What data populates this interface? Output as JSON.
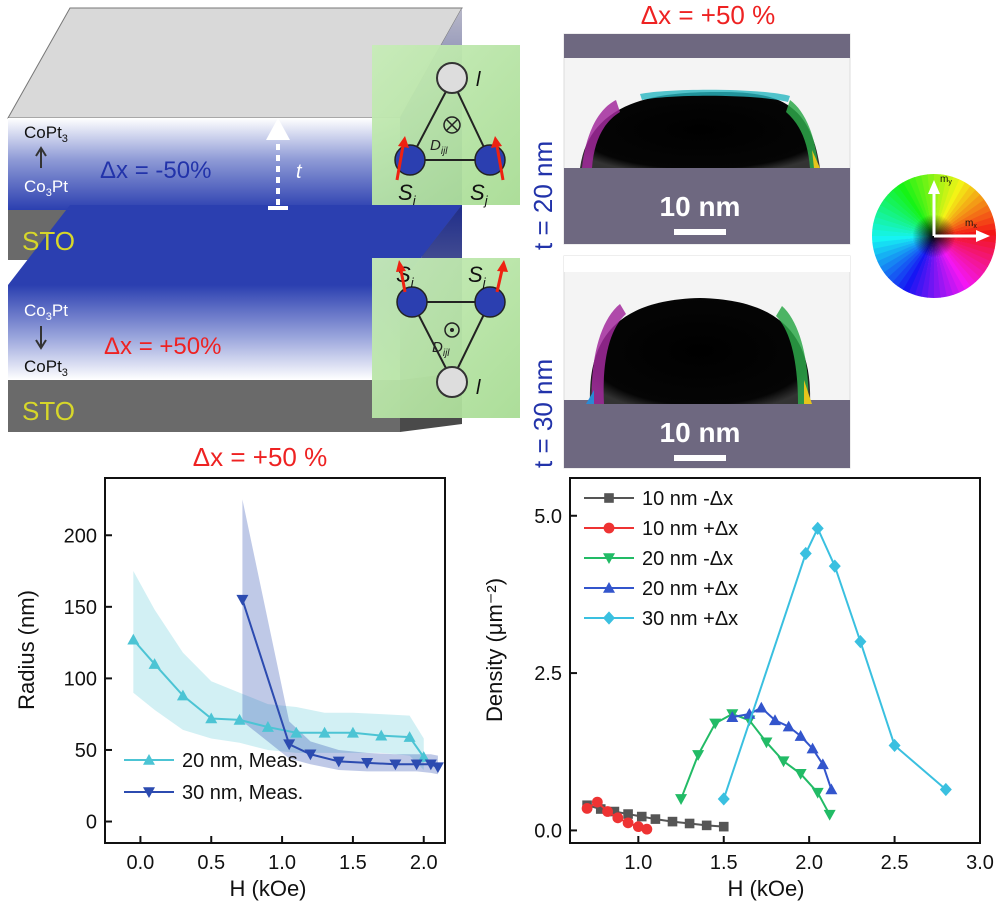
{
  "schematic": {
    "top_layer": {
      "upper_label": "CoPt",
      "upper_sub": "3",
      "lower_label": "Co",
      "lower_sub": "3",
      "lower_rest": "Pt",
      "delta": "Δx = -50%",
      "t_label": "t"
    },
    "bottom_layer": {
      "upper_label": "Co",
      "upper_sub": "3",
      "upper_rest": "Pt",
      "lower_label": "CoPt",
      "lower_sub": "3",
      "delta": "Δx = +50%"
    },
    "substrate": "STO",
    "inset_top": {
      "l": "l",
      "si": "S",
      "si_sub": "i",
      "sj": "S",
      "sj_sub": "j",
      "d": "D",
      "d_sub": "ijl"
    },
    "inset_bottom": {
      "l": "l",
      "si": "S",
      "si_sub": "i",
      "sj": "S",
      "sj_sub": "j",
      "d": "D",
      "d_sub": "ijl"
    }
  },
  "micromag": {
    "title": "Δx = +50 %",
    "panel1": {
      "t_label": "t = 20 nm",
      "scale": "10 nm"
    },
    "panel2": {
      "t_label": "t = 30 nm",
      "scale": "10 nm"
    },
    "colorwheel": {
      "my": "m",
      "my_sub": "y",
      "mx": "m",
      "mx_sub": "x"
    }
  },
  "colors": {
    "accent_red": "#ee2222",
    "accent_blue": "#2233aa",
    "film_blue": "#2b3fb0",
    "sto_gray": "#6a6a6a",
    "panel_purple": "#6e6880"
  },
  "chart_data": [
    {
      "type": "line",
      "title": "Δx = +50 %",
      "xlabel": "H (kOe)",
      "ylabel": "Radius (nm)",
      "xlim": [
        -0.25,
        2.15
      ],
      "ylim": [
        -15,
        240
      ],
      "xticks": [
        "0.0",
        "0.5",
        "1.0",
        "1.5",
        "2.0"
      ],
      "yticks": [
        "0",
        "50",
        "100",
        "150",
        "200"
      ],
      "legend_position": "bottom-left",
      "series": [
        {
          "name": "20 nm, Meas.",
          "color": "#4cc4d4",
          "marker": "triangle-up",
          "x": [
            -0.05,
            0.1,
            0.3,
            0.5,
            0.7,
            0.9,
            1.1,
            1.3,
            1.5,
            1.7,
            1.9,
            2.0
          ],
          "y": [
            127,
            110,
            88,
            72,
            71,
            66,
            62,
            62,
            62,
            60,
            59,
            45
          ],
          "band_low": [
            90,
            78,
            64,
            58,
            55,
            50,
            48,
            48,
            48,
            48,
            46,
            36
          ],
          "band_high": [
            175,
            148,
            118,
            98,
            90,
            82,
            80,
            76,
            76,
            75,
            74,
            58
          ]
        },
        {
          "name": "30 nm, Meas.",
          "color": "#2c4bb0",
          "marker": "triangle-down",
          "x": [
            0.72,
            1.05,
            1.2,
            1.4,
            1.6,
            1.8,
            1.95,
            2.05,
            2.1
          ],
          "y": [
            155,
            54,
            47,
            42,
            41,
            40,
            40,
            40,
            38
          ],
          "band_low": [
            70,
            44,
            40,
            36,
            35,
            35,
            35,
            34,
            33
          ],
          "band_high": [
            225,
            70,
            56,
            50,
            48,
            47,
            47,
            47,
            46
          ]
        }
      ]
    },
    {
      "type": "line",
      "xlabel": "H (kOe)",
      "ylabel": "Density (μm⁻²)",
      "xlim": [
        0.6,
        3.0
      ],
      "ylim": [
        -0.2,
        5.6
      ],
      "xticks": [
        "1.0",
        "1.5",
        "2.0",
        "2.5",
        "3.0"
      ],
      "yticks": [
        "0.0",
        "2.5",
        "5.0"
      ],
      "legend_position": "top-left",
      "series": [
        {
          "name": "10 nm -Δx",
          "color": "#555555",
          "marker": "square",
          "x": [
            0.7,
            0.78,
            0.86,
            0.94,
            1.02,
            1.1,
            1.2,
            1.3,
            1.4,
            1.5
          ],
          "y": [
            0.4,
            0.34,
            0.3,
            0.26,
            0.22,
            0.18,
            0.14,
            0.11,
            0.08,
            0.06
          ]
        },
        {
          "name": "10 nm +Δx",
          "color": "#ee3333",
          "marker": "circle",
          "x": [
            0.7,
            0.76,
            0.82,
            0.88,
            0.94,
            1.0,
            1.05
          ],
          "y": [
            0.35,
            0.45,
            0.3,
            0.2,
            0.12,
            0.06,
            0.02
          ]
        },
        {
          "name": "20 nm -Δx",
          "color": "#22bb66",
          "marker": "triangle-down",
          "x": [
            1.25,
            1.35,
            1.45,
            1.55,
            1.65,
            1.75,
            1.85,
            1.95,
            2.05,
            2.12
          ],
          "y": [
            0.5,
            1.2,
            1.7,
            1.85,
            1.75,
            1.4,
            1.1,
            0.9,
            0.6,
            0.25
          ]
        },
        {
          "name": "20 nm +Δx",
          "color": "#3355cc",
          "marker": "triangle-up",
          "x": [
            1.55,
            1.65,
            1.72,
            1.8,
            1.88,
            1.95,
            2.02,
            2.08,
            2.13
          ],
          "y": [
            1.8,
            1.85,
            1.95,
            1.75,
            1.65,
            1.5,
            1.3,
            1.05,
            0.65
          ]
        },
        {
          "name": "30 nm +Δx",
          "color": "#3ac0e0",
          "marker": "diamond",
          "x": [
            1.5,
            1.98,
            2.05,
            2.15,
            2.3,
            2.5,
            2.8
          ],
          "y": [
            0.5,
            4.4,
            4.8,
            4.2,
            3.0,
            1.35,
            0.65
          ]
        }
      ]
    }
  ]
}
